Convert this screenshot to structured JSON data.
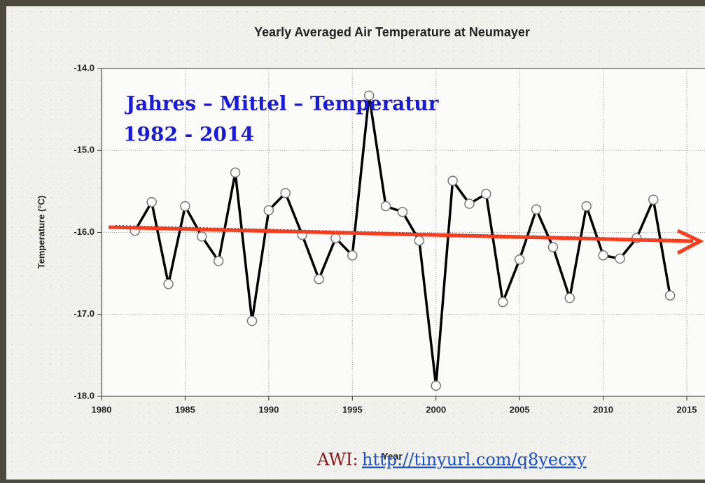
{
  "chart_data": {
    "type": "line",
    "title": "Yearly Averaged Air Temperature at Neumayer",
    "x_label": "Year",
    "y_label": "Temperature (°C)",
    "x": [
      1982,
      1983,
      1984,
      1985,
      1986,
      1987,
      1988,
      1989,
      1990,
      1991,
      1992,
      1993,
      1994,
      1995,
      1996,
      1997,
      1998,
      1999,
      2000,
      2001,
      2002,
      2003,
      2004,
      2005,
      2006,
      2007,
      2008,
      2009,
      2010,
      2011,
      2012,
      2013,
      2014
    ],
    "values": [
      -15.98,
      -15.63,
      -16.63,
      -15.68,
      -16.05,
      -16.35,
      -15.27,
      -17.08,
      -15.73,
      -15.52,
      -16.03,
      -16.57,
      -16.07,
      -16.28,
      -14.33,
      -15.68,
      -15.75,
      -16.1,
      -17.87,
      -15.37,
      -15.65,
      -15.53,
      -16.85,
      -16.33,
      -15.72,
      -16.18,
      -16.8,
      -15.68,
      -16.28,
      -16.32,
      -16.07,
      -15.6,
      -16.77
    ],
    "color": "#000000",
    "xlim": [
      1980,
      2015
    ],
    "xticks": [
      1980,
      1985,
      1990,
      1995,
      2000,
      2005,
      2010,
      2015
    ],
    "ylim": [
      -18,
      -14
    ],
    "yticks": [
      {
        "value": -18,
        "label": "-18.0"
      },
      {
        "value": -17,
        "label": "-17.0"
      },
      {
        "value": -16,
        "label": "-16.0"
      },
      {
        "value": -15,
        "label": "-15.0"
      },
      {
        "value": -14,
        "label": "-14.0"
      }
    ],
    "grid": true,
    "annotations": [
      "Jahres – Mittel – Temperatur",
      "1982 - 2014"
    ],
    "source_label": "AWI:",
    "source_url": "http://tinyurl.com/q8yecxy"
  }
}
